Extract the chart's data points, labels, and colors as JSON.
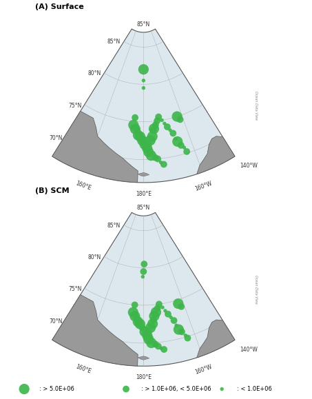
{
  "title_A": "(A) Surface",
  "title_B": "(B) SCM",
  "watermark": "Ocean Data View",
  "legend_labels": [
    ": > 5.0E+06",
    ": > 1.0E+06, < 5.0E+06",
    ": < 1.0E+06"
  ],
  "dot_color": "#3CB54A",
  "surface_points": [
    {
      "lon": 180.0,
      "lat": 82.0,
      "size": "large"
    },
    {
      "lon": 180.0,
      "lat": 80.5,
      "size": "small"
    },
    {
      "lon": 180.0,
      "lat": 79.5,
      "size": "small"
    },
    {
      "lon": 175.5,
      "lat": 75.5,
      "size": "medium"
    },
    {
      "lon": 175.0,
      "lat": 74.5,
      "size": "large"
    },
    {
      "lon": 176.0,
      "lat": 74.0,
      "size": "large"
    },
    {
      "lon": 177.0,
      "lat": 73.8,
      "size": "medium"
    },
    {
      "lon": 177.5,
      "lat": 73.2,
      "size": "large"
    },
    {
      "lon": 178.5,
      "lat": 73.0,
      "size": "large"
    },
    {
      "lon": 179.5,
      "lat": 72.5,
      "size": "large"
    },
    {
      "lon": 180.5,
      "lat": 72.0,
      "size": "large"
    },
    {
      "lon": 181.5,
      "lat": 71.5,
      "size": "large"
    },
    {
      "lon": 182.0,
      "lat": 72.0,
      "size": "medium"
    },
    {
      "lon": 183.0,
      "lat": 72.5,
      "size": "large"
    },
    {
      "lon": 184.0,
      "lat": 73.0,
      "size": "large"
    },
    {
      "lon": 184.5,
      "lat": 73.8,
      "size": "medium"
    },
    {
      "lon": 185.0,
      "lat": 74.0,
      "size": "large"
    },
    {
      "lon": 186.0,
      "lat": 74.5,
      "size": "medium"
    },
    {
      "lon": 187.0,
      "lat": 75.0,
      "size": "medium"
    },
    {
      "lon": 188.0,
      "lat": 75.5,
      "size": "medium"
    },
    {
      "lon": 189.5,
      "lat": 75.0,
      "size": "small"
    },
    {
      "lon": 190.5,
      "lat": 74.5,
      "size": "small"
    },
    {
      "lon": 191.5,
      "lat": 74.0,
      "size": "medium"
    },
    {
      "lon": 192.5,
      "lat": 73.5,
      "size": "small"
    },
    {
      "lon": 193.5,
      "lat": 73.0,
      "size": "medium"
    },
    {
      "lon": 194.0,
      "lat": 72.2,
      "size": "small"
    },
    {
      "lon": 194.5,
      "lat": 71.8,
      "size": "large"
    },
    {
      "lon": 195.5,
      "lat": 71.2,
      "size": "medium"
    },
    {
      "lon": 196.5,
      "lat": 70.8,
      "size": "small"
    },
    {
      "lon": 197.0,
      "lat": 70.2,
      "size": "medium"
    },
    {
      "lon": 182.0,
      "lat": 71.0,
      "size": "large"
    },
    {
      "lon": 183.0,
      "lat": 70.5,
      "size": "large"
    },
    {
      "lon": 184.5,
      "lat": 70.2,
      "size": "medium"
    },
    {
      "lon": 185.5,
      "lat": 70.0,
      "size": "medium"
    },
    {
      "lon": 186.5,
      "lat": 69.5,
      "size": "small"
    },
    {
      "lon": 187.5,
      "lat": 69.2,
      "size": "medium"
    },
    {
      "lon": 197.5,
      "lat": 75.0,
      "size": "large"
    },
    {
      "lon": 198.5,
      "lat": 74.5,
      "size": "medium"
    }
  ],
  "scm_points": [
    {
      "lon": 180.5,
      "lat": 80.5,
      "size": "medium"
    },
    {
      "lon": 180.0,
      "lat": 79.5,
      "size": "medium"
    },
    {
      "lon": 179.5,
      "lat": 78.8,
      "size": "small"
    },
    {
      "lon": 175.5,
      "lat": 75.0,
      "size": "medium"
    },
    {
      "lon": 175.0,
      "lat": 74.0,
      "size": "large"
    },
    {
      "lon": 176.0,
      "lat": 73.5,
      "size": "large"
    },
    {
      "lon": 177.0,
      "lat": 73.2,
      "size": "medium"
    },
    {
      "lon": 177.5,
      "lat": 72.8,
      "size": "large"
    },
    {
      "lon": 178.5,
      "lat": 72.5,
      "size": "large"
    },
    {
      "lon": 179.5,
      "lat": 72.0,
      "size": "medium"
    },
    {
      "lon": 180.5,
      "lat": 71.5,
      "size": "large"
    },
    {
      "lon": 181.5,
      "lat": 71.0,
      "size": "large"
    },
    {
      "lon": 182.0,
      "lat": 71.5,
      "size": "medium"
    },
    {
      "lon": 183.0,
      "lat": 72.0,
      "size": "large"
    },
    {
      "lon": 184.0,
      "lat": 72.5,
      "size": "large"
    },
    {
      "lon": 184.5,
      "lat": 73.0,
      "size": "medium"
    },
    {
      "lon": 185.0,
      "lat": 73.5,
      "size": "large"
    },
    {
      "lon": 186.0,
      "lat": 74.0,
      "size": "large"
    },
    {
      "lon": 187.0,
      "lat": 74.5,
      "size": "medium"
    },
    {
      "lon": 188.0,
      "lat": 75.0,
      "size": "medium"
    },
    {
      "lon": 189.5,
      "lat": 74.5,
      "size": "small"
    },
    {
      "lon": 190.5,
      "lat": 74.0,
      "size": "small"
    },
    {
      "lon": 191.5,
      "lat": 73.5,
      "size": "medium"
    },
    {
      "lon": 192.5,
      "lat": 73.0,
      "size": "small"
    },
    {
      "lon": 193.5,
      "lat": 72.5,
      "size": "medium"
    },
    {
      "lon": 194.0,
      "lat": 71.8,
      "size": "small"
    },
    {
      "lon": 194.5,
      "lat": 71.2,
      "size": "large"
    },
    {
      "lon": 195.5,
      "lat": 70.8,
      "size": "medium"
    },
    {
      "lon": 196.5,
      "lat": 70.2,
      "size": "small"
    },
    {
      "lon": 197.0,
      "lat": 69.8,
      "size": "medium"
    },
    {
      "lon": 182.0,
      "lat": 70.5,
      "size": "large"
    },
    {
      "lon": 183.0,
      "lat": 70.0,
      "size": "large"
    },
    {
      "lon": 184.5,
      "lat": 69.8,
      "size": "medium"
    },
    {
      "lon": 185.5,
      "lat": 69.5,
      "size": "medium"
    },
    {
      "lon": 186.5,
      "lat": 69.2,
      "size": "small"
    },
    {
      "lon": 187.5,
      "lat": 69.0,
      "size": "medium"
    },
    {
      "lon": 197.5,
      "lat": 74.5,
      "size": "large"
    },
    {
      "lon": 198.5,
      "lat": 74.0,
      "size": "medium"
    }
  ],
  "size_map": {
    "large": 120,
    "medium": 50,
    "small": 15
  },
  "ocean_color": "#dce8ee",
  "land_color": "#999999",
  "grid_color": "#aaaaaa",
  "extent": [
    150,
    210,
    67,
    87
  ],
  "lat_lines": [
    70,
    75,
    80,
    85
  ],
  "lon_lines": [
    160,
    180,
    200,
    220
  ],
  "lon_labels": {
    "160": "160°E",
    "180": "180°E",
    "200": "160°W",
    "220": "140°W"
  },
  "lat_labels": {
    "70": "70°N",
    "75": "75°N",
    "80": "80°N",
    "85": "85°N"
  },
  "figsize": [
    4.53,
    5.79
  ],
  "dpi": 100
}
